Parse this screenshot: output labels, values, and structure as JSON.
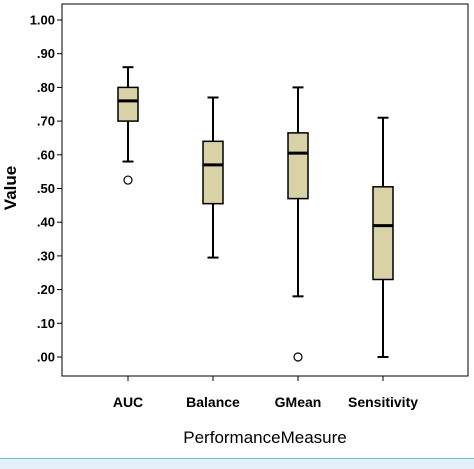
{
  "chart_data": {
    "type": "boxplot",
    "xlabel": "PerformanceMeasure",
    "ylabel": "Value",
    "ylim": [
      0.0,
      1.0
    ],
    "yticks": [
      ".00",
      ".10",
      ".20",
      ".30",
      ".40",
      ".50",
      ".60",
      ".70",
      ".80",
      ".90",
      "1.00"
    ],
    "categories": [
      "AUC",
      "Balance",
      "GMean",
      "Sensitivity"
    ],
    "box_color": "#d8d2a6",
    "boxes": [
      {
        "category": "AUC",
        "whisker_low": 0.58,
        "q1": 0.7,
        "median": 0.76,
        "q3": 0.8,
        "whisker_high": 0.86,
        "outliers": [
          0.525
        ]
      },
      {
        "category": "Balance",
        "whisker_low": 0.295,
        "q1": 0.455,
        "median": 0.57,
        "q3": 0.64,
        "whisker_high": 0.77,
        "outliers": []
      },
      {
        "category": "GMean",
        "whisker_low": 0.18,
        "q1": 0.47,
        "median": 0.605,
        "q3": 0.665,
        "whisker_high": 0.8,
        "outliers": [
          0.0
        ]
      },
      {
        "category": "Sensitivity",
        "whisker_low": 0.0,
        "q1": 0.23,
        "median": 0.39,
        "q3": 0.505,
        "whisker_high": 0.71,
        "outliers": []
      }
    ],
    "grid": false
  }
}
